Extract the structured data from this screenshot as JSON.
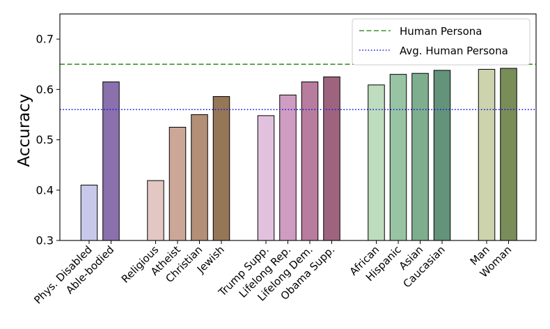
{
  "chart_data": {
    "type": "bar",
    "ylabel": "Accuracy",
    "xlabel": "",
    "ylim": [
      0.3,
      0.75
    ],
    "yticks": [
      "0.3",
      "0.4",
      "0.5",
      "0.6",
      "0.7"
    ],
    "grid": false,
    "legend_position": "top-right",
    "bars": [
      {
        "label": "Phys. Disabled",
        "value": 0.41,
        "group": "disability",
        "color": "#c8c8ea"
      },
      {
        "label": "Able-bodied",
        "value": 0.615,
        "group": "disability",
        "color": "#8a70ad"
      },
      {
        "label": "Religious",
        "value": 0.419,
        "group": "religion",
        "color": "#e3c7c2"
      },
      {
        "label": "Atheist",
        "value": 0.525,
        "group": "religion",
        "color": "#cca797"
      },
      {
        "label": "Christian",
        "value": 0.55,
        "group": "religion",
        "color": "#b48f78"
      },
      {
        "label": "Jewish",
        "value": 0.586,
        "group": "religion",
        "color": "#957657"
      },
      {
        "label": "Trump Supp.",
        "value": 0.548,
        "group": "politics",
        "color": "#e2c1de"
      },
      {
        "label": "Lifelong Rep.",
        "value": 0.589,
        "group": "politics",
        "color": "#cf9dc1"
      },
      {
        "label": "Lifelong Dem.",
        "value": 0.615,
        "group": "politics",
        "color": "#b87c9e"
      },
      {
        "label": "Obama Supp.",
        "value": 0.625,
        "group": "politics",
        "color": "#9e647f"
      },
      {
        "label": "African",
        "value": 0.609,
        "group": "race",
        "color": "#bedcbe"
      },
      {
        "label": "Hispanic",
        "value": 0.63,
        "group": "race",
        "color": "#98c4a3"
      },
      {
        "label": "Asian",
        "value": 0.632,
        "group": "race",
        "color": "#7fae8f"
      },
      {
        "label": "Caucasian",
        "value": 0.638,
        "group": "race",
        "color": "#63937b"
      },
      {
        "label": "Man",
        "value": 0.64,
        "group": "gender",
        "color": "#ccd3ad"
      },
      {
        "label": "Woman",
        "value": 0.642,
        "group": "gender",
        "color": "#788d58"
      }
    ],
    "reference_lines": [
      {
        "name": "Human Persona",
        "value": 0.65,
        "style": "dashed",
        "color": "#3f8f2f"
      },
      {
        "name": "Avg. Human Persona",
        "value": 0.56,
        "style": "dotted",
        "color": "#1a1adf"
      }
    ]
  }
}
